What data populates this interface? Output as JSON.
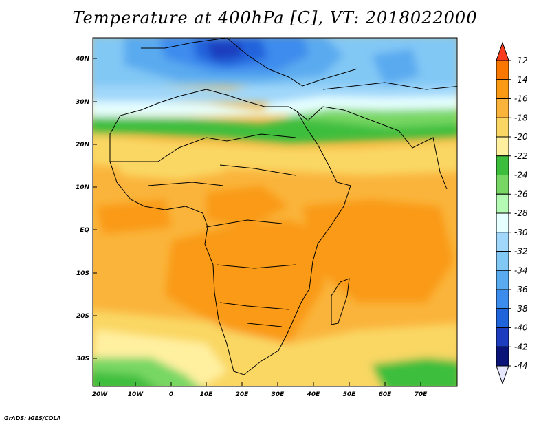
{
  "title": "Temperature at 400hPa [C], VT: 2018022000",
  "footer": "GrADS: IGES/COLA",
  "map": {
    "lat_ticks": [
      "40N",
      "30N",
      "20N",
      "10N",
      "EQ",
      "10S",
      "20S",
      "30S"
    ],
    "lon_ticks": [
      "20W",
      "10W",
      "0",
      "10E",
      "20E",
      "30E",
      "40E",
      "50E",
      "60E",
      "70E"
    ],
    "lat_range": [
      -37,
      45
    ],
    "lon_range": [
      -23,
      80
    ]
  },
  "colorbar": {
    "labels": [
      "-12",
      "-14",
      "-16",
      "-18",
      "-20",
      "-22",
      "-24",
      "-26",
      "-28",
      "-30",
      "-32",
      "-34",
      "-36",
      "-38",
      "-40",
      "-42",
      "-44"
    ],
    "colors": [
      "#fa3c1e",
      "#fa7800",
      "#fa9a14",
      "#fab43c",
      "#fad764",
      "#fff0a0",
      "#3cbe3c",
      "#78d764",
      "#b4fab4",
      "#e6ffff",
      "#a0d7fa",
      "#82c8f5",
      "#5aaaf0",
      "#3c8cee",
      "#2064dc",
      "#1e3cbe",
      "#0a1478",
      "#e6e6ff"
    ]
  }
}
